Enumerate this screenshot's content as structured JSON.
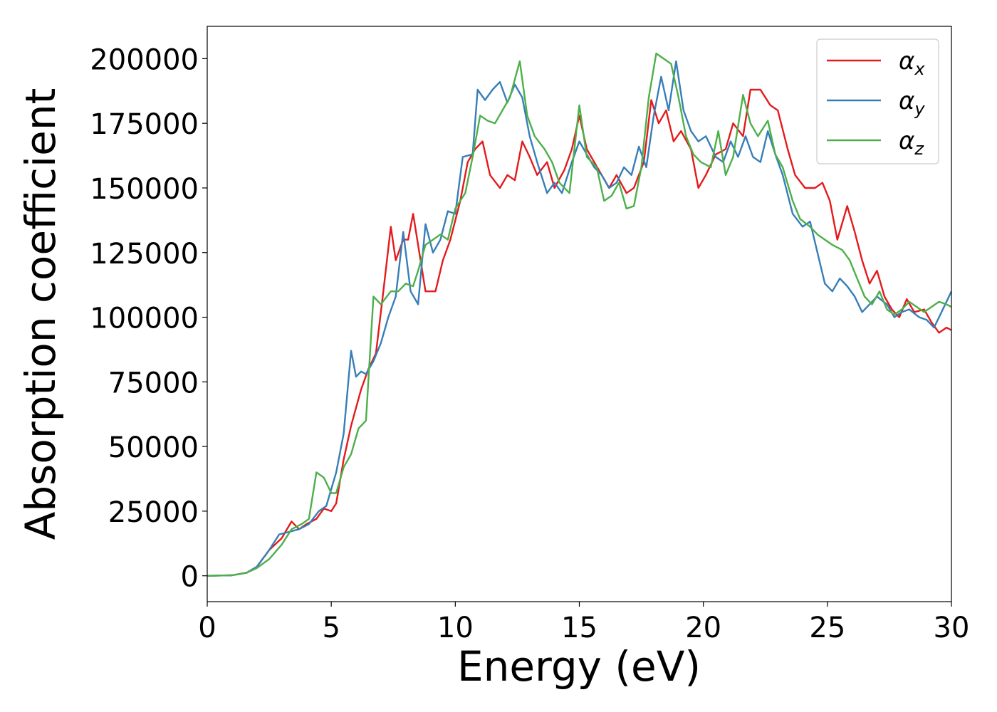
{
  "chart_data": {
    "type": "line",
    "title": "",
    "xlabel": "Energy (eV)",
    "ylabel": "Absorption coefficient",
    "xlim": [
      0,
      30
    ],
    "ylim": [
      -10000,
      212500
    ],
    "xticks": [
      0,
      5,
      10,
      15,
      20,
      25,
      30
    ],
    "yticks": [
      0,
      25000,
      50000,
      75000,
      100000,
      125000,
      150000,
      175000,
      200000
    ],
    "grid": false,
    "legend": {
      "placement": "top-right"
    },
    "series": [
      {
        "name": "αx",
        "name_base": "α",
        "name_sub": "x",
        "color": "#e41a1c",
        "points": [
          [
            0,
            0
          ],
          [
            1,
            200
          ],
          [
            1.6,
            1200
          ],
          [
            2,
            3500
          ],
          [
            2.5,
            10000
          ],
          [
            3,
            14500
          ],
          [
            3.4,
            21000
          ],
          [
            3.7,
            18000
          ],
          [
            4,
            20000
          ],
          [
            4.4,
            22000
          ],
          [
            4.7,
            26000
          ],
          [
            5,
            25000
          ],
          [
            5.2,
            28000
          ],
          [
            5.5,
            45000
          ],
          [
            5.8,
            58000
          ],
          [
            6.2,
            72000
          ],
          [
            6.5,
            80000
          ],
          [
            6.8,
            86000
          ],
          [
            7.1,
            110000
          ],
          [
            7.4,
            135000
          ],
          [
            7.6,
            122000
          ],
          [
            7.9,
            130000
          ],
          [
            8.1,
            130000
          ],
          [
            8.3,
            140000
          ],
          [
            8.5,
            128000
          ],
          [
            8.8,
            110000
          ],
          [
            9.2,
            110000
          ],
          [
            9.5,
            122000
          ],
          [
            9.8,
            130000
          ],
          [
            10.2,
            145000
          ],
          [
            10.5,
            160000
          ],
          [
            10.8,
            165000
          ],
          [
            11.1,
            168000
          ],
          [
            11.4,
            155000
          ],
          [
            11.8,
            150000
          ],
          [
            12.1,
            155000
          ],
          [
            12.4,
            153000
          ],
          [
            12.7,
            168000
          ],
          [
            13,
            162000
          ],
          [
            13.3,
            155000
          ],
          [
            13.7,
            160000
          ],
          [
            14,
            150000
          ],
          [
            14.4,
            157000
          ],
          [
            14.7,
            165000
          ],
          [
            15,
            178000
          ],
          [
            15.3,
            165000
          ],
          [
            15.6,
            160000
          ],
          [
            15.9,
            155000
          ],
          [
            16.2,
            150000
          ],
          [
            16.5,
            155000
          ],
          [
            16.9,
            148000
          ],
          [
            17.2,
            150000
          ],
          [
            17.6,
            160000
          ],
          [
            17.9,
            184000
          ],
          [
            18.2,
            175000
          ],
          [
            18.5,
            180000
          ],
          [
            18.8,
            168000
          ],
          [
            19.1,
            172000
          ],
          [
            19.5,
            165000
          ],
          [
            19.8,
            150000
          ],
          [
            20.1,
            155000
          ],
          [
            20.5,
            163000
          ],
          [
            20.9,
            165000
          ],
          [
            21.2,
            175000
          ],
          [
            21.6,
            170000
          ],
          [
            21.9,
            188000
          ],
          [
            22.3,
            188000
          ],
          [
            22.7,
            182000
          ],
          [
            23,
            180000
          ],
          [
            23.4,
            165000
          ],
          [
            23.7,
            155000
          ],
          [
            24.1,
            150000
          ],
          [
            24.5,
            150000
          ],
          [
            24.8,
            152000
          ],
          [
            25.1,
            145000
          ],
          [
            25.4,
            130000
          ],
          [
            25.8,
            143000
          ],
          [
            26.1,
            133000
          ],
          [
            26.4,
            122000
          ],
          [
            26.7,
            113000
          ],
          [
            27,
            118000
          ],
          [
            27.3,
            108000
          ],
          [
            27.6,
            103000
          ],
          [
            27.9,
            100000
          ],
          [
            28.2,
            107000
          ],
          [
            28.5,
            102000
          ],
          [
            28.9,
            103000
          ],
          [
            29.2,
            98000
          ],
          [
            29.5,
            94000
          ],
          [
            29.8,
            96000
          ],
          [
            30,
            95000
          ]
        ]
      },
      {
        "name": "αy",
        "name_base": "α",
        "name_sub": "y",
        "color": "#377eb8",
        "points": [
          [
            0,
            0
          ],
          [
            1,
            200
          ],
          [
            1.6,
            1200
          ],
          [
            2,
            3500
          ],
          [
            2.5,
            10000
          ],
          [
            2.9,
            16000
          ],
          [
            3.3,
            17000
          ],
          [
            3.7,
            18000
          ],
          [
            4.1,
            20000
          ],
          [
            4.5,
            25000
          ],
          [
            4.8,
            27000
          ],
          [
            5.2,
            40000
          ],
          [
            5.5,
            55000
          ],
          [
            5.8,
            87000
          ],
          [
            6,
            77000
          ],
          [
            6.2,
            79000
          ],
          [
            6.4,
            78000
          ],
          [
            6.7,
            83000
          ],
          [
            7,
            90000
          ],
          [
            7.3,
            100000
          ],
          [
            7.6,
            108000
          ],
          [
            7.9,
            133000
          ],
          [
            8.2,
            110000
          ],
          [
            8.5,
            105000
          ],
          [
            8.8,
            136000
          ],
          [
            9.1,
            125000
          ],
          [
            9.4,
            130000
          ],
          [
            9.7,
            141000
          ],
          [
            10,
            140000
          ],
          [
            10.3,
            162000
          ],
          [
            10.7,
            163000
          ],
          [
            10.9,
            188000
          ],
          [
            11.2,
            184000
          ],
          [
            11.5,
            188000
          ],
          [
            11.8,
            191000
          ],
          [
            12.1,
            183000
          ],
          [
            12.4,
            190000
          ],
          [
            12.7,
            185000
          ],
          [
            13,
            170000
          ],
          [
            13.3,
            160000
          ],
          [
            13.7,
            148000
          ],
          [
            14,
            152000
          ],
          [
            14.3,
            148000
          ],
          [
            14.7,
            160000
          ],
          [
            15,
            168000
          ],
          [
            15.3,
            163000
          ],
          [
            15.6,
            158000
          ],
          [
            15.9,
            155000
          ],
          [
            16.2,
            150000
          ],
          [
            16.5,
            152000
          ],
          [
            16.8,
            158000
          ],
          [
            17.1,
            155000
          ],
          [
            17.4,
            166000
          ],
          [
            17.7,
            158000
          ],
          [
            18,
            178000
          ],
          [
            18.3,
            193000
          ],
          [
            18.6,
            180000
          ],
          [
            18.9,
            199000
          ],
          [
            19.2,
            180000
          ],
          [
            19.5,
            172000
          ],
          [
            19.8,
            168000
          ],
          [
            20.1,
            170000
          ],
          [
            20.5,
            162000
          ],
          [
            20.8,
            160000
          ],
          [
            21.1,
            168000
          ],
          [
            21.4,
            162000
          ],
          [
            21.7,
            170000
          ],
          [
            22,
            162000
          ],
          [
            22.3,
            160000
          ],
          [
            22.6,
            172000
          ],
          [
            22.9,
            163000
          ],
          [
            23.2,
            155000
          ],
          [
            23.6,
            140000
          ],
          [
            24,
            135000
          ],
          [
            24.3,
            137000
          ],
          [
            24.6,
            125000
          ],
          [
            24.9,
            113000
          ],
          [
            25.2,
            110000
          ],
          [
            25.5,
            115000
          ],
          [
            25.8,
            112000
          ],
          [
            26.1,
            108000
          ],
          [
            26.4,
            102000
          ],
          [
            26.7,
            105000
          ],
          [
            27,
            108000
          ],
          [
            27.4,
            105000
          ],
          [
            27.7,
            100000
          ],
          [
            28,
            102000
          ],
          [
            28.3,
            103000
          ],
          [
            28.7,
            100000
          ],
          [
            29,
            99000
          ],
          [
            29.3,
            96000
          ],
          [
            29.6,
            102000
          ],
          [
            30,
            110000
          ]
        ]
      },
      {
        "name": "αz",
        "name_base": "α",
        "name_sub": "z",
        "color": "#4daf4a",
        "points": [
          [
            0,
            0
          ],
          [
            1,
            200
          ],
          [
            1.6,
            1200
          ],
          [
            2,
            3000
          ],
          [
            2.5,
            6500
          ],
          [
            3,
            12000
          ],
          [
            3.4,
            18000
          ],
          [
            3.8,
            20000
          ],
          [
            4.1,
            22000
          ],
          [
            4.4,
            40000
          ],
          [
            4.7,
            38000
          ],
          [
            5,
            32000
          ],
          [
            5.2,
            32000
          ],
          [
            5.5,
            42000
          ],
          [
            5.8,
            47000
          ],
          [
            6.1,
            57000
          ],
          [
            6.4,
            60000
          ],
          [
            6.7,
            108000
          ],
          [
            7,
            105000
          ],
          [
            7.4,
            110000
          ],
          [
            7.7,
            110000
          ],
          [
            8,
            113000
          ],
          [
            8.3,
            112000
          ],
          [
            8.5,
            118000
          ],
          [
            8.8,
            128000
          ],
          [
            9.1,
            130000
          ],
          [
            9.4,
            132000
          ],
          [
            9.7,
            130000
          ],
          [
            10,
            142000
          ],
          [
            10.4,
            148000
          ],
          [
            10.7,
            162000
          ],
          [
            11,
            178000
          ],
          [
            11.3,
            176000
          ],
          [
            11.6,
            175000
          ],
          [
            11.9,
            180000
          ],
          [
            12.2,
            185000
          ],
          [
            12.6,
            199000
          ],
          [
            12.9,
            178000
          ],
          [
            13.2,
            170000
          ],
          [
            13.6,
            165000
          ],
          [
            13.9,
            160000
          ],
          [
            14.2,
            152000
          ],
          [
            14.6,
            148000
          ],
          [
            15,
            182000
          ],
          [
            15.3,
            162000
          ],
          [
            15.7,
            158000
          ],
          [
            16,
            145000
          ],
          [
            16.3,
            147000
          ],
          [
            16.6,
            152000
          ],
          [
            16.9,
            142000
          ],
          [
            17.2,
            143000
          ],
          [
            17.5,
            158000
          ],
          [
            17.8,
            185000
          ],
          [
            18.1,
            202000
          ],
          [
            18.4,
            200000
          ],
          [
            18.7,
            198000
          ],
          [
            19,
            185000
          ],
          [
            19.3,
            170000
          ],
          [
            19.6,
            163000
          ],
          [
            19.9,
            160000
          ],
          [
            20.3,
            158000
          ],
          [
            20.6,
            172000
          ],
          [
            20.9,
            155000
          ],
          [
            21.2,
            162000
          ],
          [
            21.6,
            186000
          ],
          [
            21.9,
            175000
          ],
          [
            22.2,
            170000
          ],
          [
            22.6,
            176000
          ],
          [
            22.9,
            163000
          ],
          [
            23.2,
            158000
          ],
          [
            23.6,
            145000
          ],
          [
            23.9,
            138000
          ],
          [
            24.3,
            135000
          ],
          [
            24.6,
            132000
          ],
          [
            24.9,
            130000
          ],
          [
            25.2,
            128000
          ],
          [
            25.6,
            126000
          ],
          [
            25.9,
            122000
          ],
          [
            26.2,
            115000
          ],
          [
            26.5,
            108000
          ],
          [
            26.8,
            105000
          ],
          [
            27.1,
            110000
          ],
          [
            27.4,
            103000
          ],
          [
            27.7,
            101000
          ],
          [
            28,
            103000
          ],
          [
            28.3,
            106000
          ],
          [
            28.6,
            104000
          ],
          [
            28.9,
            102000
          ],
          [
            29.2,
            104000
          ],
          [
            29.5,
            106000
          ],
          [
            29.8,
            105000
          ],
          [
            30,
            104000
          ]
        ]
      }
    ]
  }
}
